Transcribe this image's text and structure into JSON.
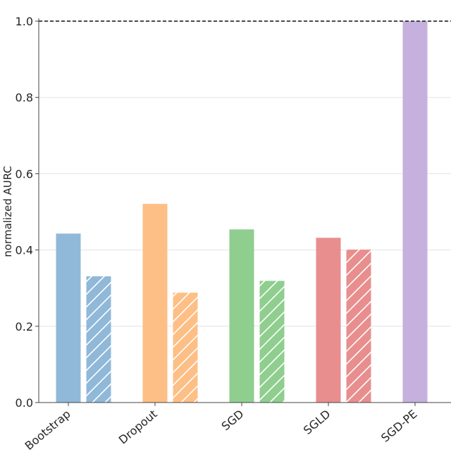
{
  "chart_data": {
    "type": "bar",
    "title": "",
    "xlabel": "",
    "ylabel": "normalized AURC",
    "ylim": [
      0,
      1.0
    ],
    "yticks": [
      "0.0",
      "0.2",
      "0.4",
      "0.6",
      "0.8",
      "1.0"
    ],
    "grid": true,
    "reference_line": {
      "y": 1.0,
      "style": "dashed",
      "color": "#111111"
    },
    "categories": [
      "Bootstrap",
      "Dropout",
      "SGD",
      "SGLD",
      "SGD-PE"
    ],
    "colors": [
      "#90b8d8",
      "#fdbf86",
      "#8fce8f",
      "#e88e8e",
      "#c5b0de"
    ],
    "series": [
      {
        "pattern": "solid",
        "values": [
          0.443,
          0.521,
          0.454,
          0.432,
          1.0
        ]
      },
      {
        "pattern": "hatched",
        "values": [
          0.331,
          0.288,
          0.319,
          0.401,
          null
        ]
      }
    ]
  }
}
